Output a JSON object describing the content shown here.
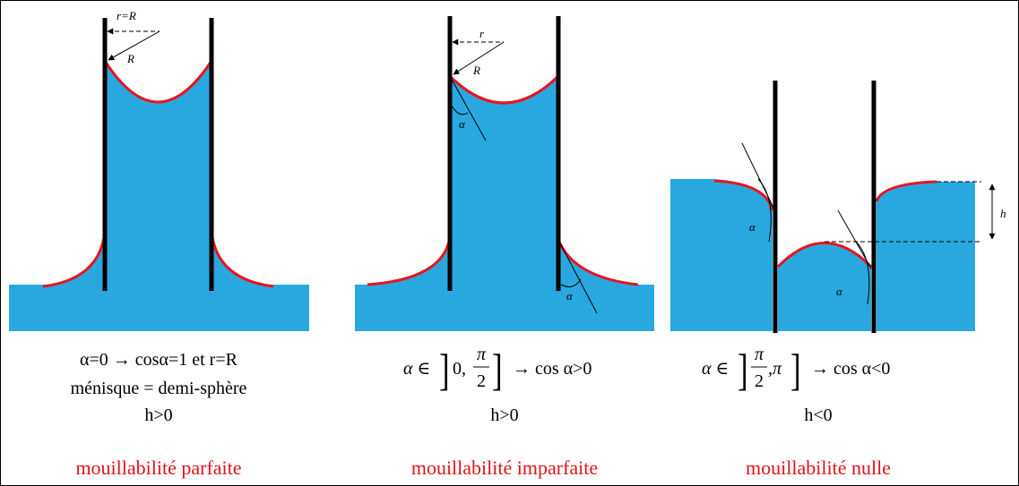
{
  "panels": [
    {
      "top_label": "r=R",
      "radius_label": "R",
      "line1": "α=0 → cosα=1 et r=R",
      "line2": "ménisque = demi-sphère",
      "line3": "h>0",
      "caption": "mouillabilité parfaite"
    },
    {
      "top_label": "r",
      "radius_label": "R",
      "angle_top": "α",
      "angle_bottom": "α",
      "formula": {
        "lhs": "α ∈",
        "bracket_open": "]",
        "start": "0,",
        "num": "π",
        "den": "2",
        "bracket_close": "]",
        "rhs": "→ cos α>0"
      },
      "line3": "h>0",
      "caption": "mouillabilité imparfaite"
    },
    {
      "angle_left": "α",
      "angle_middle": "α",
      "height_label": "h",
      "formula": {
        "lhs": "α ∈",
        "bracket_open": "]",
        "num": "π",
        "den": "2",
        "end": ",π",
        "bracket_close": "]",
        "rhs": "→ cos α<0"
      },
      "line3": "h<0",
      "caption": "mouillabilité nulle"
    }
  ]
}
